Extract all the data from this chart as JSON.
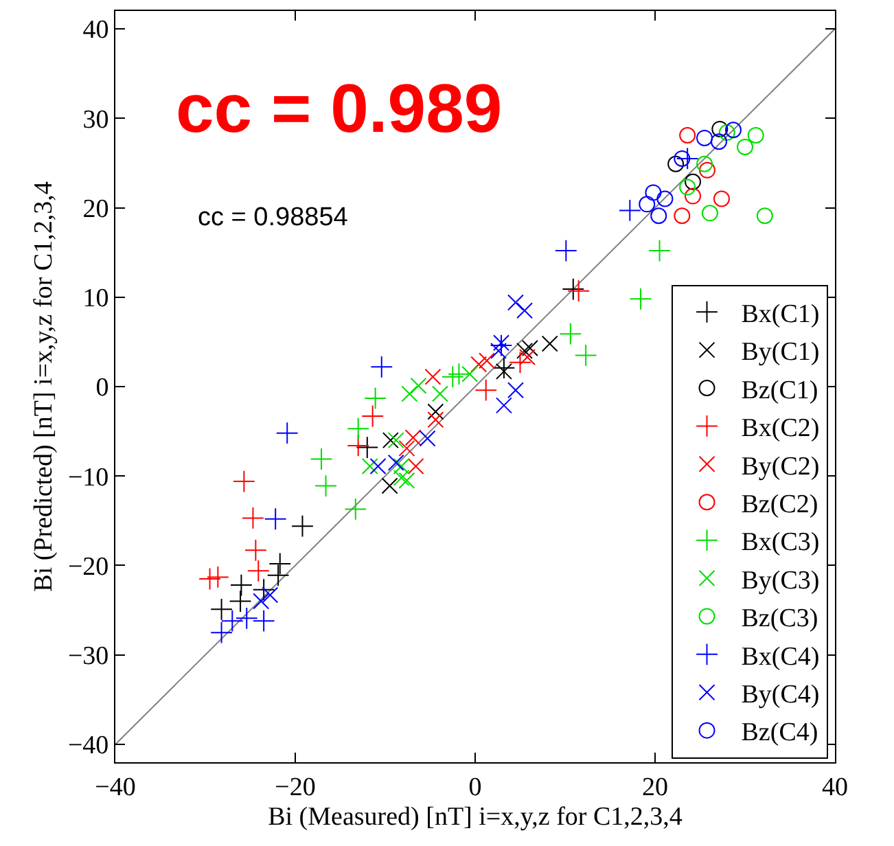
{
  "chart_data": {
    "type": "scatter",
    "xlabel": "Bi (Measured) [nT] i=x,y,z for C1,2,3,4",
    "ylabel": "Bi (Predicted) [nT] i=x,y,z for C1,2,3,4",
    "xlim": [
      -40,
      40
    ],
    "ylim": [
      -42,
      42
    ],
    "xticks": [
      -40,
      -20,
      0,
      20,
      40
    ],
    "yticks": [
      -40,
      -30,
      -20,
      -10,
      0,
      10,
      20,
      30,
      40
    ],
    "grid": false,
    "legend": "bottom right",
    "annotations": [
      "cc = 0.989",
      "cc = 0.98854"
    ],
    "series": [
      {
        "type": "line",
        "color": "#808080",
        "marker": "none",
        "x": [
          -40,
          40
        ],
        "values": [
          -40,
          40
        ]
      },
      {
        "name": "Bx(C1)",
        "color": "#000000",
        "marker": "plus",
        "x": [
          10.9,
          -19.2,
          -12,
          -21.7,
          -21.9,
          -26,
          -26.1,
          -28.2,
          -23.5,
          3.2
        ],
        "values": [
          10.9,
          -15.6,
          -6.8,
          -19.8,
          -21.1,
          -22.2,
          -24,
          -24.9,
          -22.7,
          2.1
        ]
      },
      {
        "name": "By(C1)",
        "color": "#000000",
        "marker": "cross",
        "x": [
          8.3,
          6.1,
          5.5,
          -4.4,
          -9.4,
          -9.5,
          3.2
        ],
        "values": [
          4.8,
          4.3,
          4,
          -2.8,
          -6,
          -11.1,
          1.7
        ]
      },
      {
        "name": "Bz(C1)",
        "color": "#000000",
        "marker": "circle",
        "x": [
          22.3,
          27.2,
          24.2
        ],
        "values": [
          24.9,
          28.8,
          22.9
        ]
      },
      {
        "name": "Bx(C2)",
        "color": "#ff0000",
        "marker": "plus",
        "x": [
          -25.7,
          -24.7,
          -24.4,
          -29.5,
          -28.6,
          -24.1,
          -11.4,
          -13,
          1.2,
          11.5,
          5
        ],
        "values": [
          -10.6,
          -14.7,
          -18.3,
          -21.5,
          -21.3,
          -20.6,
          -3.3,
          -6.6,
          -0.4,
          10.7,
          2.7
        ]
      },
      {
        "name": "By(C2)",
        "color": "#ff0000",
        "marker": "cross",
        "x": [
          -4.7,
          0.4,
          1.3,
          -6.9,
          -6.6,
          -4.4,
          5.8,
          -7.6
        ],
        "values": [
          1.1,
          2.5,
          2.9,
          -5.7,
          -8.9,
          -3.7,
          3.3,
          -6.9
        ]
      },
      {
        "name": "Bz(C2)",
        "color": "#ff0000",
        "marker": "circle",
        "x": [
          23.6,
          27.4,
          23,
          24.2,
          25.8
        ],
        "values": [
          28.1,
          21,
          19.1,
          21.3,
          24.2
        ]
      },
      {
        "name": "Bx(C3)",
        "color": "#00dd00",
        "marker": "plus",
        "x": [
          20.5,
          18.4,
          10.6,
          12.3,
          -17.1,
          -16.6,
          -13.3,
          -13,
          -11.1,
          -1.8,
          -2.5
        ],
        "values": [
          15.2,
          9.8,
          5.9,
          3.5,
          -8.1,
          -11.1,
          -13.7,
          -4.7,
          -1.3,
          1.4,
          1.1
        ]
      },
      {
        "name": "By(C3)",
        "color": "#00dd00",
        "marker": "cross",
        "x": [
          -7.3,
          -6.3,
          -3.9,
          -11.7,
          -8.2,
          -8.8,
          -0.6,
          -8.2,
          -7.6
        ],
        "values": [
          -0.8,
          0.1,
          -0.8,
          -8.9,
          -10.2,
          -6,
          1.4,
          -8.9,
          -10.5
        ]
      },
      {
        "name": "Bz(C3)",
        "color": "#00dd00",
        "marker": "circle",
        "x": [
          32.2,
          31.2,
          26.1,
          28,
          25.5,
          30,
          23.6
        ],
        "values": [
          19.1,
          28.1,
          19.4,
          28.4,
          24.9,
          26.8,
          22.3
        ]
      },
      {
        "name": "Bx(C4)",
        "color": "#0000ff",
        "marker": "plus",
        "x": [
          10.1,
          -10.4,
          -20.9,
          -22.2,
          -28.2,
          -27,
          -25.4,
          -23.5,
          17.2,
          23.6,
          2.9
        ],
        "values": [
          15.2,
          2.2,
          -5.2,
          -14.8,
          -27.5,
          -26.2,
          -25.9,
          -26.2,
          19.7,
          25.5,
          4.6
        ]
      },
      {
        "name": "By(C4)",
        "color": "#0000ff",
        "marker": "cross",
        "x": [
          4.5,
          5.5,
          3.2,
          4.5,
          -5.3,
          2.9,
          2.6,
          -10.8,
          -8.8,
          -22.8,
          -23.8
        ],
        "values": [
          9.4,
          8.5,
          -2.1,
          -0.4,
          -5.8,
          4.9,
          4,
          -8.9,
          -8.5,
          -23.3,
          -24
        ]
      },
      {
        "name": "Bz(C4)",
        "color": "#0000ff",
        "marker": "circle",
        "x": [
          19.1,
          20.4,
          21.1,
          25.5,
          27.1,
          23,
          19.8,
          28.7
        ],
        "values": [
          20.4,
          19.1,
          21,
          27.8,
          27.4,
          25.5,
          21.7,
          28.7
        ]
      }
    ]
  }
}
